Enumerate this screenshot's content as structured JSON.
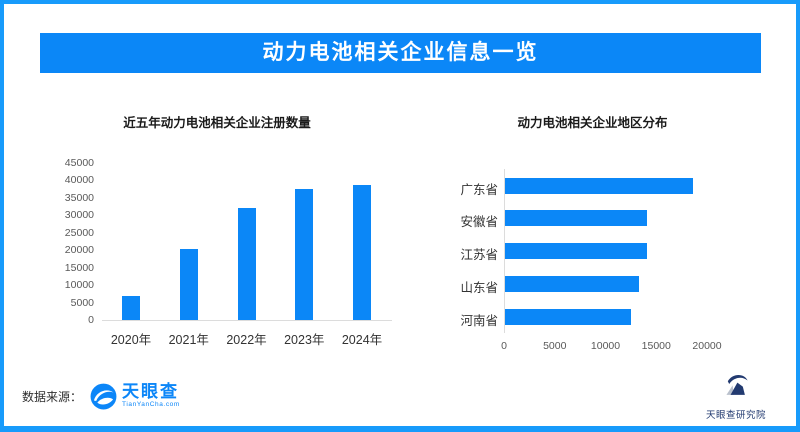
{
  "banner": {
    "title": "动力电池相关企业信息一览"
  },
  "colors": {
    "accent": "#0b87f7",
    "frame_border": "#189bfb",
    "axis_line": "#dcdcdc",
    "brand_blue": "#0c86f8",
    "navy": "#223a70"
  },
  "chart_data": [
    {
      "type": "bar",
      "orientation": "vertical",
      "title": "近五年动力电池相关企业注册数量",
      "categories": [
        "2020年",
        "2021年",
        "2022年",
        "2023年",
        "2024年"
      ],
      "values": [
        7000,
        20500,
        32000,
        37600,
        38700
      ],
      "xlabel": "",
      "ylabel": "",
      "ylim": [
        0,
        45000
      ],
      "yticks": [
        0,
        5000,
        10000,
        15000,
        20000,
        25000,
        30000,
        35000,
        40000,
        45000
      ],
      "grid": false,
      "legend": "none",
      "bar_color": "#0b87f7"
    },
    {
      "type": "bar",
      "orientation": "horizontal",
      "title": "动力电池相关企业地区分布",
      "categories": [
        "广东省",
        "安徽省",
        "江苏省",
        "山东省",
        "河南省"
      ],
      "values": [
        18500,
        14000,
        14000,
        13200,
        12400
      ],
      "xlabel": "",
      "ylabel": "",
      "xlim": [
        0,
        20000
      ],
      "xticks": [
        0,
        5000,
        10000,
        15000,
        20000
      ],
      "grid": false,
      "legend": "none",
      "bar_color": "#0b87f7"
    }
  ],
  "footer": {
    "source_label": "数据来源：",
    "source_logo_text": "天眼查",
    "source_logo_subtext": "TianYanCha.com",
    "institute_label": "天眼查研究院"
  }
}
